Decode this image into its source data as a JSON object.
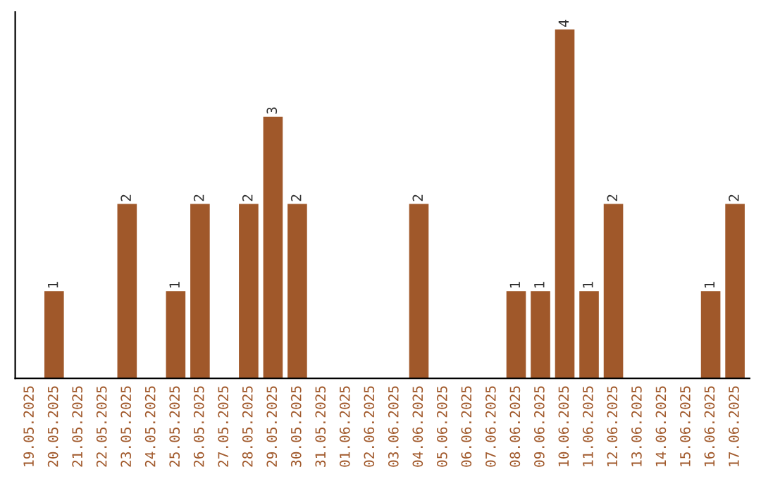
{
  "chart_data": {
    "type": "bar",
    "categories": [
      "19.05.2025",
      "20.05.2025",
      "21.05.2025",
      "22.05.2025",
      "23.05.2025",
      "24.05.2025",
      "25.05.2025",
      "26.05.2025",
      "27.05.2025",
      "28.05.2025",
      "29.05.2025",
      "30.05.2025",
      "31.05.2025",
      "01.06.2025",
      "02.06.2025",
      "03.06.2025",
      "04.06.2025",
      "05.06.2025",
      "06.06.2025",
      "07.06.2025",
      "08.06.2025",
      "09.06.2025",
      "10.06.2025",
      "11.06.2025",
      "12.06.2025",
      "13.06.2025",
      "14.06.2025",
      "15.06.2025",
      "16.06.2025",
      "17.06.2025"
    ],
    "values": [
      0,
      1,
      0,
      0,
      2,
      0,
      1,
      2,
      0,
      2,
      3,
      2,
      0,
      0,
      0,
      0,
      2,
      0,
      0,
      0,
      1,
      1,
      4,
      1,
      2,
      0,
      0,
      0,
      1,
      2
    ],
    "value_labels": [
      null,
      "1",
      null,
      null,
      "2",
      null,
      "1",
      "2",
      null,
      "2",
      "3",
      "2",
      null,
      null,
      null,
      null,
      "2",
      null,
      null,
      null,
      "1",
      "1",
      "4",
      "1",
      "2",
      null,
      null,
      null,
      "1",
      "2"
    ],
    "color": "#a0582a",
    "ylim": [
      0,
      4.2
    ],
    "tick_labels": "x",
    "grid": false,
    "legend": false
  }
}
